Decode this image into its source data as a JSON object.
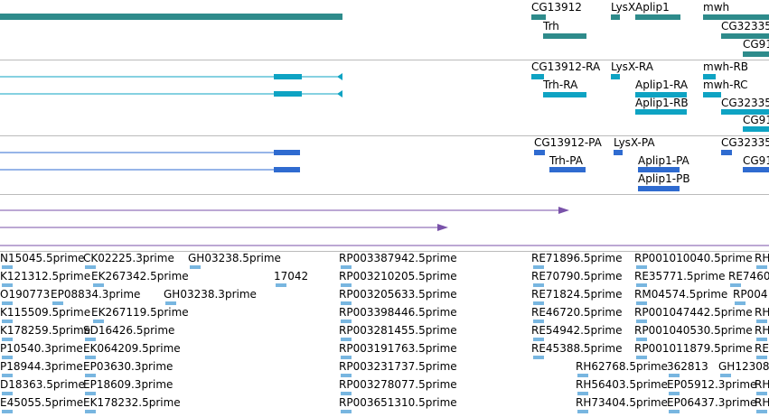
{
  "colors": {
    "gene": "#2e8b8b",
    "transcript": "#0ea3c3",
    "protein": "#2f6bd0",
    "alignment": "#7952a9",
    "est": "#78b6e0",
    "divider": "#bbbbbb"
  },
  "tracks": {
    "genes": [
      "CG13912",
      "LysX",
      "Aplip1",
      "mwh",
      "Trh",
      "CG32335",
      "CG91"
    ],
    "transcripts": [
      "CG13912-RA",
      "LysX-RA",
      "mwh-RB",
      "Trh-RA",
      "Aplip1-RA",
      "mwh-RC",
      "Aplip1-RB",
      "CG32335",
      "CG91"
    ],
    "proteins": [
      "CG13912-PA",
      "LysX-PA",
      "CG32335",
      "Trh-PA",
      "Aplip1-PA",
      "CG91",
      "Aplip1-PB"
    ],
    "ests": [
      "N15045.5prime",
      "CK02225.3prime",
      "GH03238.5prime",
      "RP003387942.5prime",
      "RE71896.5prime",
      "RP001010040.5prime",
      "RH",
      "K121312.5prime",
      "EK267342.5prime",
      "17042",
      "RP003210205.5prime",
      "RE70790.5prime",
      "RE35771.5prime",
      "RE7460",
      "O190773",
      "EP08834.3prime",
      "GH03238.3prime",
      "RP003205633.5prime",
      "RE71824.5prime",
      "RM04574.5prime",
      "RP004",
      "K115509.5prime",
      "EK267119.5prime",
      "RP003398446.5prime",
      "RE46720.5prime",
      "RP001047442.5prime",
      "RH",
      "K178259.5prime",
      "SD16426.5prime",
      "RP003281455.5prime",
      "RE54942.5prime",
      "RP001040530.5prime",
      "RH",
      "P10540.3prime",
      "EK064209.5prime",
      "RP003191763.5prime",
      "RE45388.5prime",
      "RP001011879.5prime",
      "RE",
      "P18944.3prime",
      "EP03630.3prime",
      "RP003231737.5prime",
      "RH62768.5prime",
      "362813",
      "GH12308",
      "D18363.5prime",
      "EP18609.3prime",
      "RP003278077.5prime",
      "RH56403.5prime",
      "EP05912.3prime",
      "RH",
      "E45055.5prime",
      "EK178232.5prime",
      "RP003651310.5prime",
      "RH73404.5prime",
      "EP06437.3prime",
      "RH"
    ]
  }
}
